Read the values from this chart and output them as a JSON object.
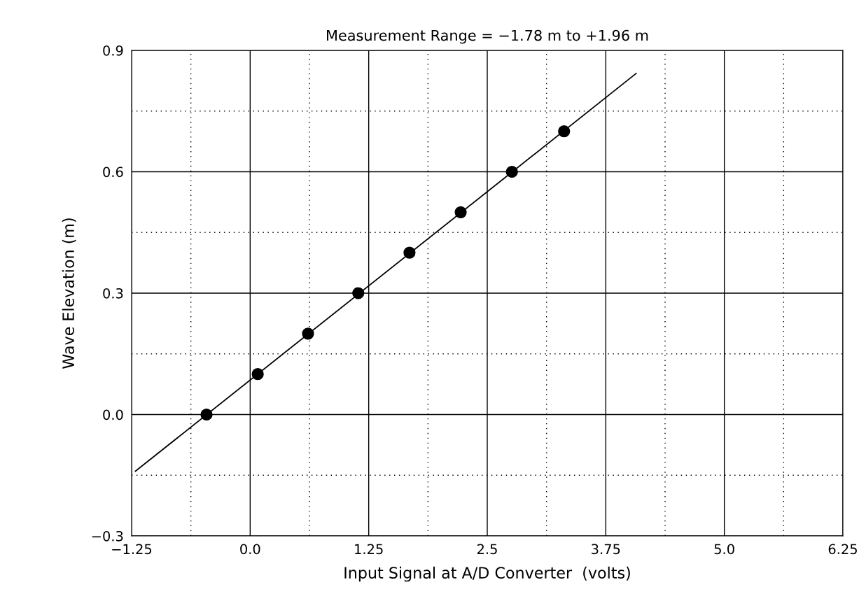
{
  "chart_data": {
    "type": "scatter",
    "title": "Measurement Range = −1.78 m to +1.96 m",
    "xlabel": "Input Signal at A/D Converter  (volts)",
    "ylabel": "Wave Elevation (m)",
    "series": [
      {
        "type": "line",
        "color": "#000000",
        "marker": "none",
        "x": [
          -1.21,
          4.07
        ],
        "values": [
          -0.14,
          0.843
        ]
      },
      {
        "color": "#000000",
        "marker": "circle",
        "x": [
          -0.46,
          0.08,
          0.61,
          1.14,
          1.68,
          2.22,
          2.76,
          3.31
        ],
        "values": [
          0.0,
          0.1,
          0.2,
          0.3,
          0.4,
          0.5,
          0.6,
          0.7
        ]
      }
    ],
    "xlim": [
      -1.25,
      6.25
    ],
    "ylim": [
      -0.3,
      0.9
    ],
    "xticks": [
      {
        "value": -1.25,
        "label": "−1.25"
      },
      {
        "value": 0,
        "label": "0.0"
      },
      1.25,
      2.5,
      3.75,
      {
        "value": 5,
        "label": "5.0"
      },
      6.25
    ],
    "yticks": [
      {
        "value": -0.3,
        "label": "−0.3"
      },
      {
        "value": 0,
        "label": "0.0"
      },
      0.3,
      0.6,
      0.9
    ],
    "grid": true,
    "legend": false
  }
}
